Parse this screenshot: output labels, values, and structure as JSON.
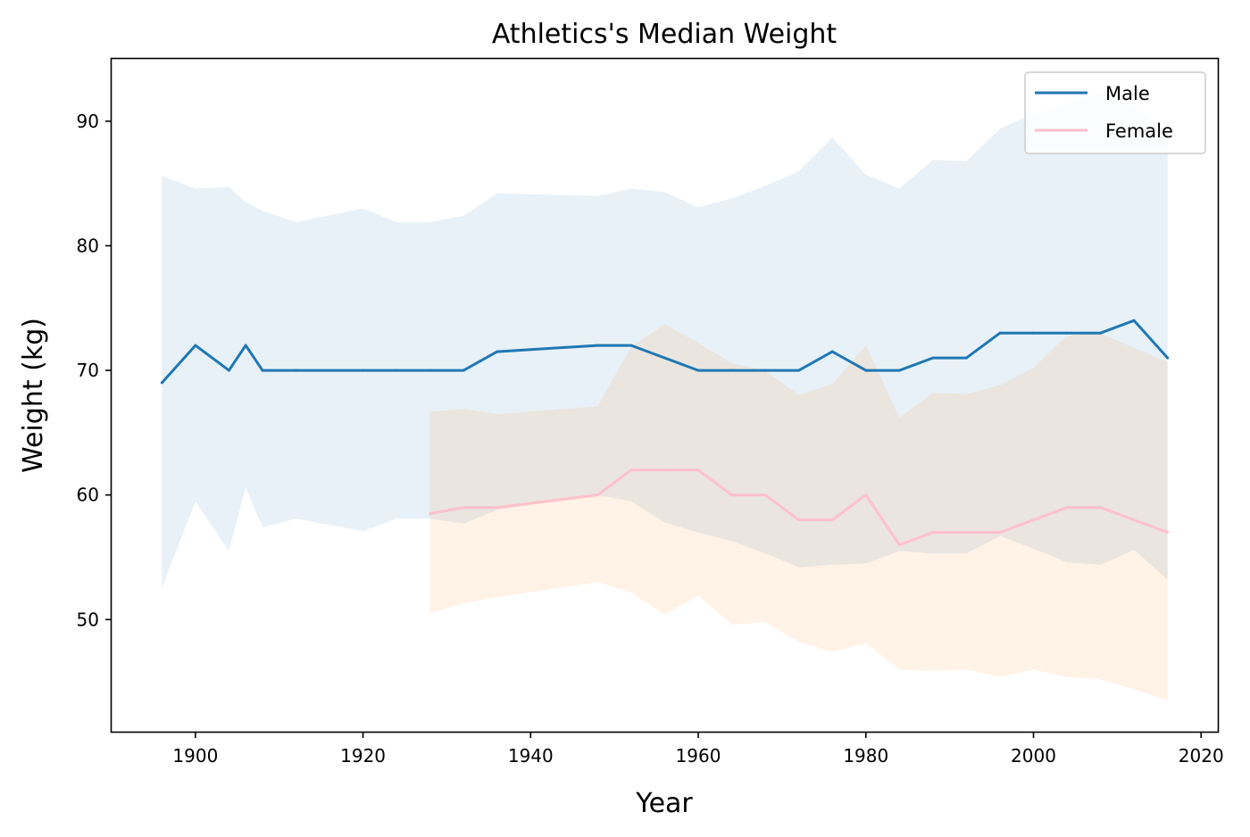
{
  "chart_data": {
    "type": "line",
    "title": "Athletics's Median Weight",
    "xlabel": "Year",
    "ylabel": "Weight (kg)",
    "xlim": [
      1890,
      2022
    ],
    "ylim": [
      41,
      95
    ],
    "xticks": [
      1900,
      1920,
      1940,
      1960,
      1980,
      2000,
      2020
    ],
    "yticks": [
      50,
      60,
      70,
      80,
      90
    ],
    "grid": false,
    "legend_position": "top-right",
    "series": [
      {
        "name": "Male",
        "color": "#1f77b4",
        "band_color": "#1f77b4",
        "band_opacity": 0.1,
        "x": [
          1896,
          1900,
          1904,
          1906,
          1908,
          1912,
          1920,
          1924,
          1928,
          1932,
          1936,
          1948,
          1952,
          1956,
          1960,
          1964,
          1968,
          1972,
          1976,
          1980,
          1984,
          1988,
          1992,
          1996,
          2000,
          2004,
          2008,
          2012,
          2016
        ],
        "values": [
          69,
          72,
          70,
          72,
          70,
          70,
          70,
          70,
          70,
          70,
          71.5,
          72,
          72,
          71,
          70,
          70,
          70,
          70,
          71.5,
          70,
          70,
          71,
          71,
          73,
          73,
          73,
          73,
          74,
          71
        ],
        "upper": [
          85.6,
          84.6,
          84.7,
          83.5,
          82.8,
          81.9,
          83.0,
          81.9,
          81.9,
          82.4,
          84.2,
          84.0,
          84.6,
          84.3,
          83.1,
          83.8,
          84.8,
          86.0,
          88.7,
          85.7,
          84.6,
          86.9,
          86.8,
          89.4,
          90.6,
          91.5,
          92.3,
          91.2,
          89.3
        ],
        "lower": [
          52.5,
          59.5,
          55.5,
          60.6,
          57.4,
          58.1,
          57.1,
          58.1,
          58.1,
          57.7,
          58.8,
          60.0,
          59.5,
          57.8,
          57.0,
          56.3,
          55.3,
          54.2,
          54.4,
          54.5,
          55.5,
          55.3,
          55.3,
          56.7,
          55.7,
          54.6,
          54.4,
          55.6,
          53.2
        ]
      },
      {
        "name": "Female",
        "color": "#ffc0cb",
        "band_color": "#ff7f0e",
        "band_opacity": 0.1,
        "x": [
          1928,
          1932,
          1936,
          1948,
          1952,
          1956,
          1960,
          1964,
          1968,
          1972,
          1976,
          1980,
          1984,
          1988,
          1992,
          1996,
          2000,
          2004,
          2008,
          2012,
          2016
        ],
        "values": [
          58.5,
          59,
          59,
          60,
          62,
          62,
          62,
          60,
          60,
          58,
          58,
          60,
          56,
          57,
          57,
          57,
          58,
          59,
          59,
          58,
          57
        ],
        "upper": [
          66.7,
          66.9,
          66.5,
          67.1,
          71.9,
          73.7,
          72.2,
          70.6,
          70.0,
          68.0,
          68.9,
          72.0,
          66.2,
          68.2,
          68.1,
          68.8,
          70.2,
          72.8,
          73.0,
          71.8,
          70.7
        ],
        "lower": [
          50.5,
          51.3,
          51.8,
          53.0,
          52.2,
          50.4,
          51.9,
          49.6,
          49.8,
          48.2,
          47.4,
          48.1,
          46.0,
          45.9,
          46.0,
          45.4,
          46.0,
          45.4,
          45.2,
          44.4,
          43.5
        ]
      }
    ]
  }
}
